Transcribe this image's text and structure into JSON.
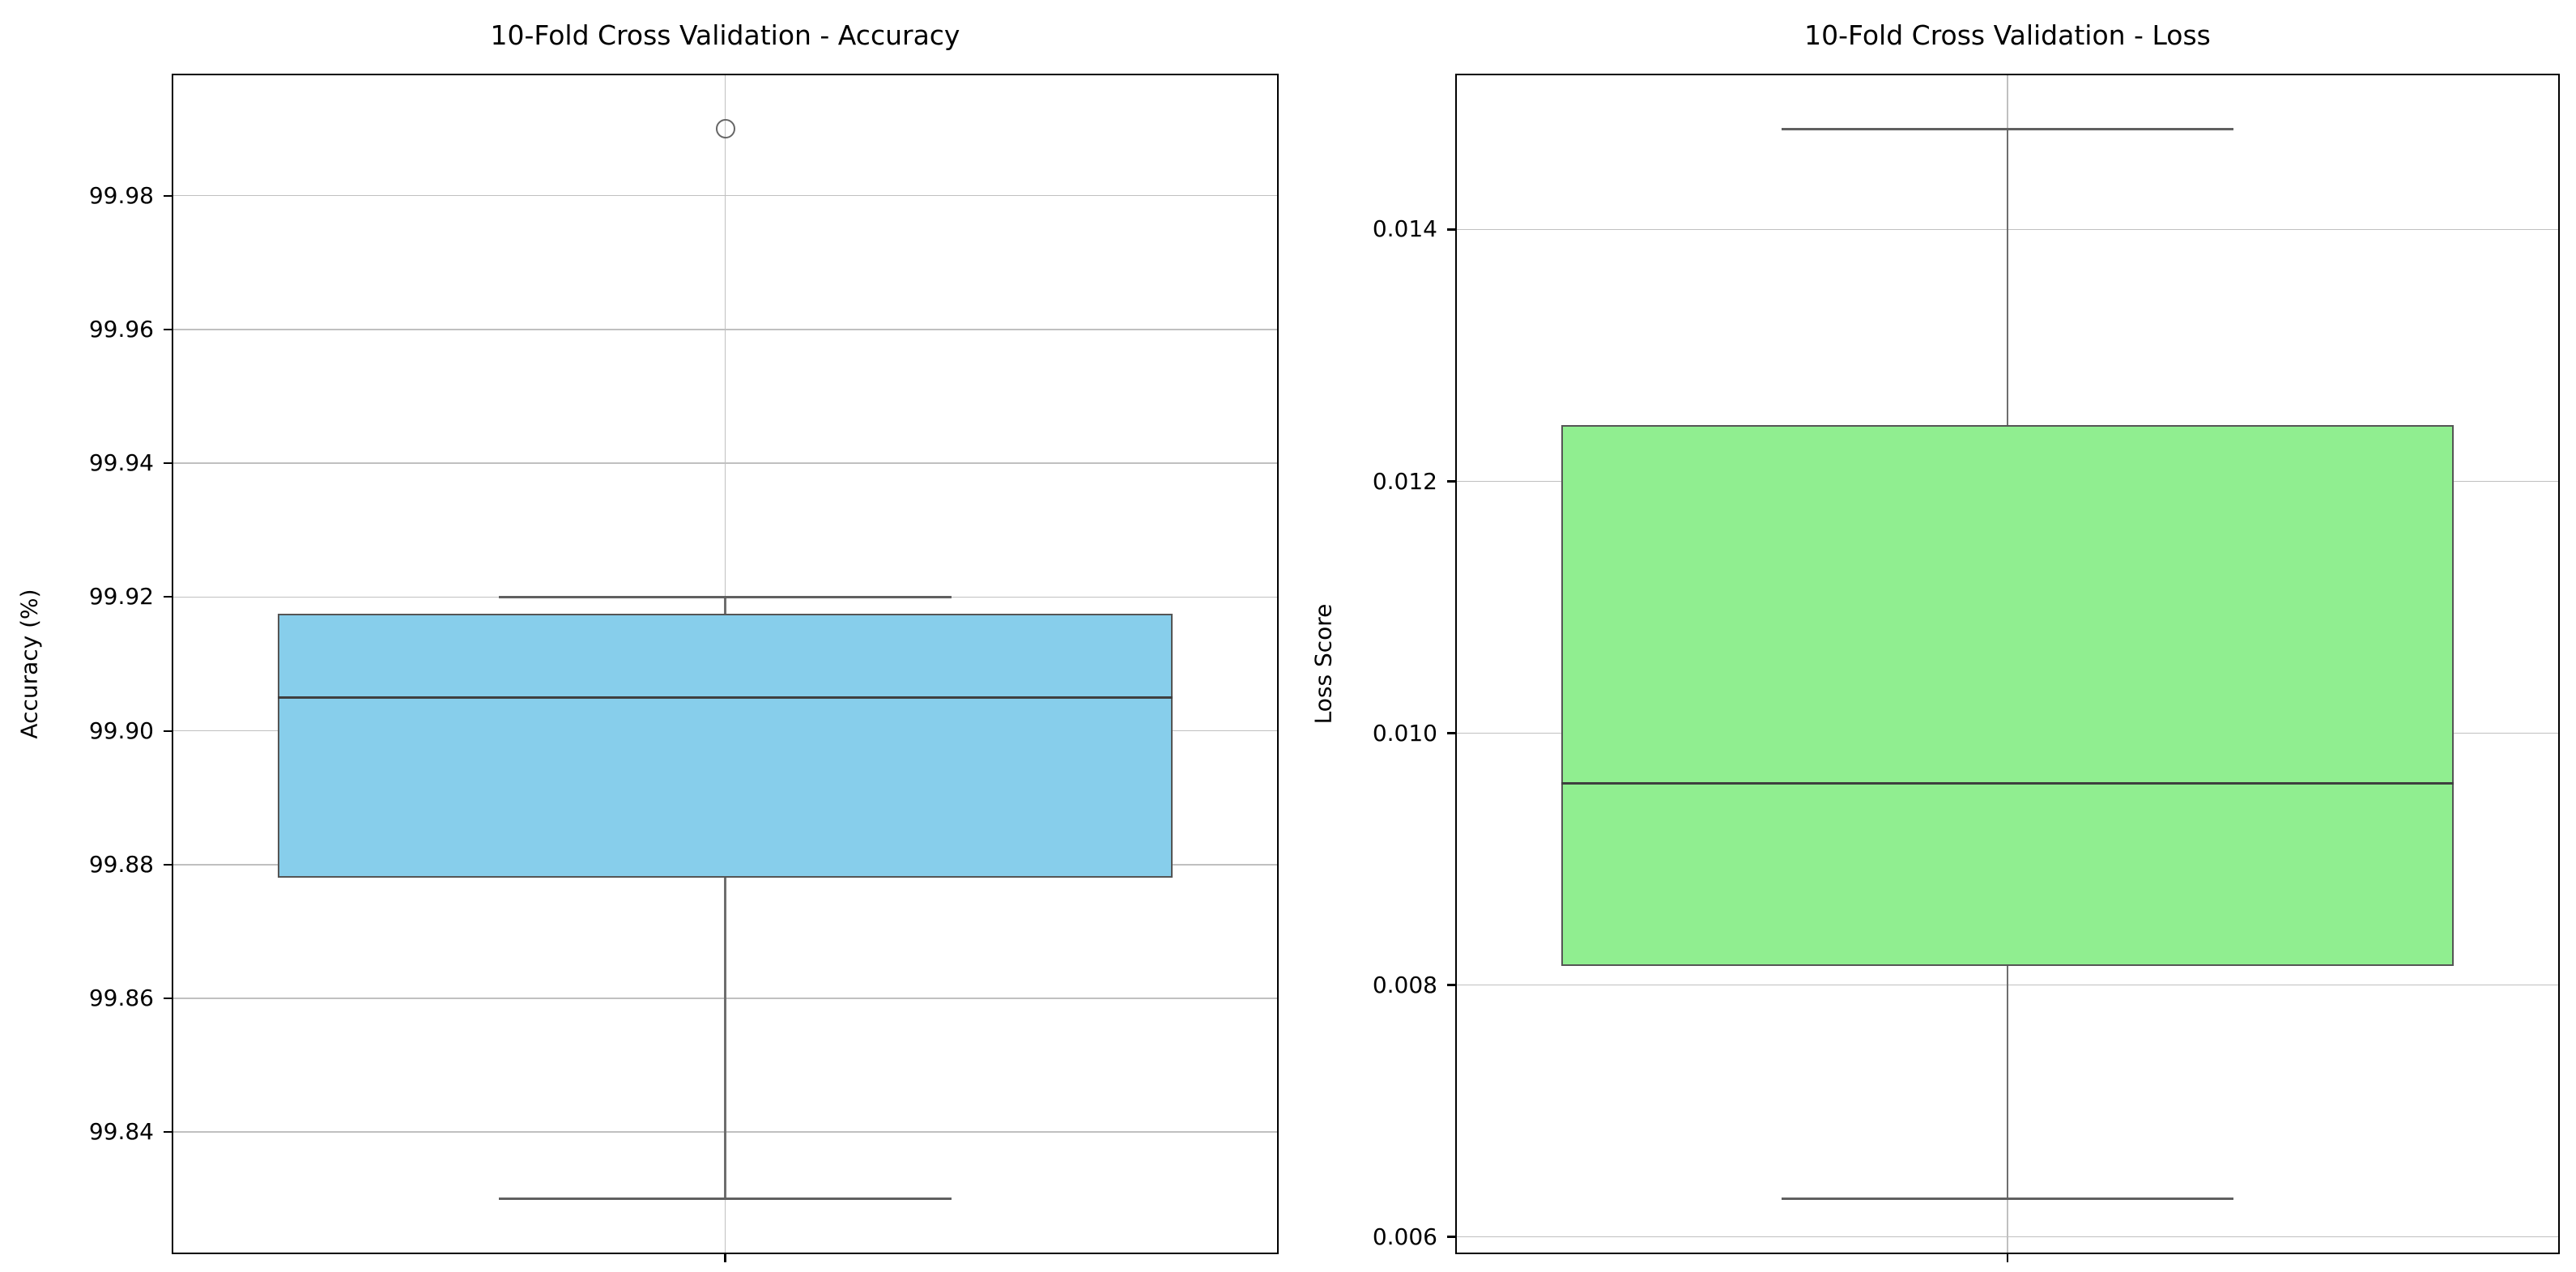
{
  "chart_data": [
    {
      "type": "box",
      "title": "10-Fold Cross Validation - Accuracy",
      "xlabel": "",
      "ylabel": "Accuracy (%)",
      "grid": true,
      "legend": false,
      "ylim": [
        99.822,
        99.998
      ],
      "yticks": [
        {
          "value": 99.98,
          "label": "99.98"
        },
        {
          "value": 99.96,
          "label": "99.96"
        },
        {
          "value": 99.94,
          "label": "99.94"
        },
        {
          "value": 99.92,
          "label": "99.92"
        },
        {
          "value": 99.9,
          "label": "99.90"
        },
        {
          "value": 99.88,
          "label": "99.88"
        },
        {
          "value": 99.86,
          "label": "99.86"
        },
        {
          "value": 99.84,
          "label": "99.84"
        }
      ],
      "series": [
        {
          "name": "accuracy-fold-distribution",
          "whisker_low": 99.83,
          "q1": 99.878,
          "median": 99.905,
          "q3": 99.9175,
          "whisker_high": 99.92,
          "outliers": [
            99.99
          ],
          "fill_color": "#87ceeb"
        }
      ]
    },
    {
      "type": "box",
      "title": "10-Fold Cross Validation - Loss",
      "xlabel": "",
      "ylabel": "Loss Score",
      "grid": true,
      "legend": false,
      "ylim": [
        0.005875,
        0.015225
      ],
      "yticks": [
        {
          "value": 0.014,
          "label": "0.014"
        },
        {
          "value": 0.012,
          "label": "0.012"
        },
        {
          "value": 0.01,
          "label": "0.010"
        },
        {
          "value": 0.008,
          "label": "0.008"
        },
        {
          "value": 0.006,
          "label": "0.006"
        }
      ],
      "series": [
        {
          "name": "loss-fold-distribution",
          "whisker_low": 0.0063,
          "q1": 0.00815,
          "median": 0.0096,
          "q3": 0.01245,
          "whisker_high": 0.0148,
          "outliers": [],
          "fill_color": "#90ee90"
        }
      ]
    }
  ],
  "style": {
    "background": "#ffffff",
    "text_color": "#000000",
    "grid_color": "#c0c0c0",
    "spine_color": "#000000",
    "box_edge_color": "#555555",
    "median_color": "#3f3f3f",
    "whisker_color": "#6e6e6e",
    "cap_color": "#606060",
    "outlier_edge_color": "#666666"
  }
}
